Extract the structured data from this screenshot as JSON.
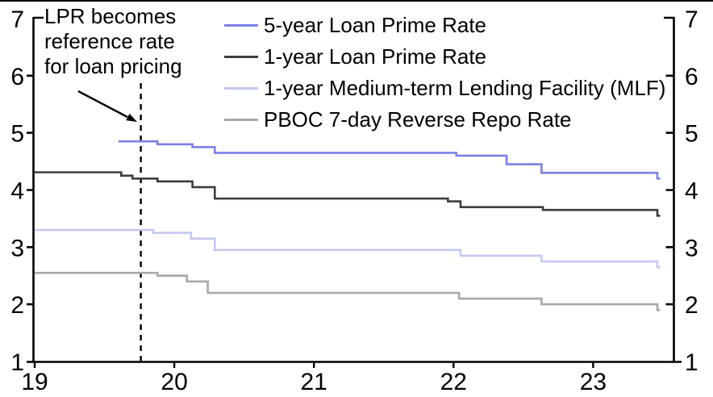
{
  "chart_data": {
    "type": "line",
    "subtype": "step",
    "title": "",
    "xlabel": "",
    "ylabel": "",
    "x_ticks": [
      "19",
      "20",
      "21",
      "22",
      "23"
    ],
    "y_ticks": [
      "7",
      "6",
      "5",
      "4",
      "3",
      "2",
      "1"
    ],
    "xlim": [
      19,
      23.6
    ],
    "ylim": [
      1,
      7
    ],
    "grid": false,
    "y_axis_sides": "both",
    "legend_position": "top-center-inside",
    "axis_color": "#000000",
    "annotation": {
      "text": "LPR becomes\nreference rate\nfor loan pricing",
      "event_year": 19.76,
      "marker": "dashed-vertical-line",
      "pointer": "arrow"
    },
    "series": [
      {
        "name": "5-year Loan Prime Rate",
        "color": "#7b80e5",
        "points": [
          [
            19.6,
            4.85
          ],
          [
            19.88,
            4.8
          ],
          [
            20.13,
            4.75
          ],
          [
            20.29,
            4.65
          ],
          [
            22.02,
            4.6
          ],
          [
            22.38,
            4.45
          ],
          [
            22.63,
            4.3
          ],
          [
            23.46,
            4.2
          ]
        ],
        "x_end": 23.48
      },
      {
        "name": "1-year Loan Prime Rate",
        "color": "#3d3d3d",
        "points": [
          [
            19.0,
            4.31
          ],
          [
            19.62,
            4.25
          ],
          [
            19.7,
            4.2
          ],
          [
            19.88,
            4.15
          ],
          [
            20.13,
            4.05
          ],
          [
            20.29,
            3.85
          ],
          [
            21.96,
            3.8
          ],
          [
            22.05,
            3.7
          ],
          [
            22.64,
            3.65
          ],
          [
            23.46,
            3.55
          ]
        ],
        "x_end": 23.48
      },
      {
        "name": "1-year Medium-term Lending Facility (MLF)",
        "color": "#c3c7f3",
        "points": [
          [
            19.0,
            3.3
          ],
          [
            19.85,
            3.25
          ],
          [
            20.12,
            3.15
          ],
          [
            20.29,
            2.95
          ],
          [
            22.05,
            2.85
          ],
          [
            22.63,
            2.75
          ],
          [
            23.46,
            2.65
          ]
        ],
        "x_end": 23.48
      },
      {
        "name": "PBOC 7-day Reverse Repo Rate",
        "color": "#a8a8a8",
        "points": [
          [
            19.0,
            2.55
          ],
          [
            19.88,
            2.5
          ],
          [
            20.09,
            2.4
          ],
          [
            20.24,
            2.2
          ],
          [
            22.04,
            2.1
          ],
          [
            22.63,
            2.0
          ],
          [
            23.46,
            1.9
          ]
        ],
        "x_end": 23.48
      }
    ]
  }
}
